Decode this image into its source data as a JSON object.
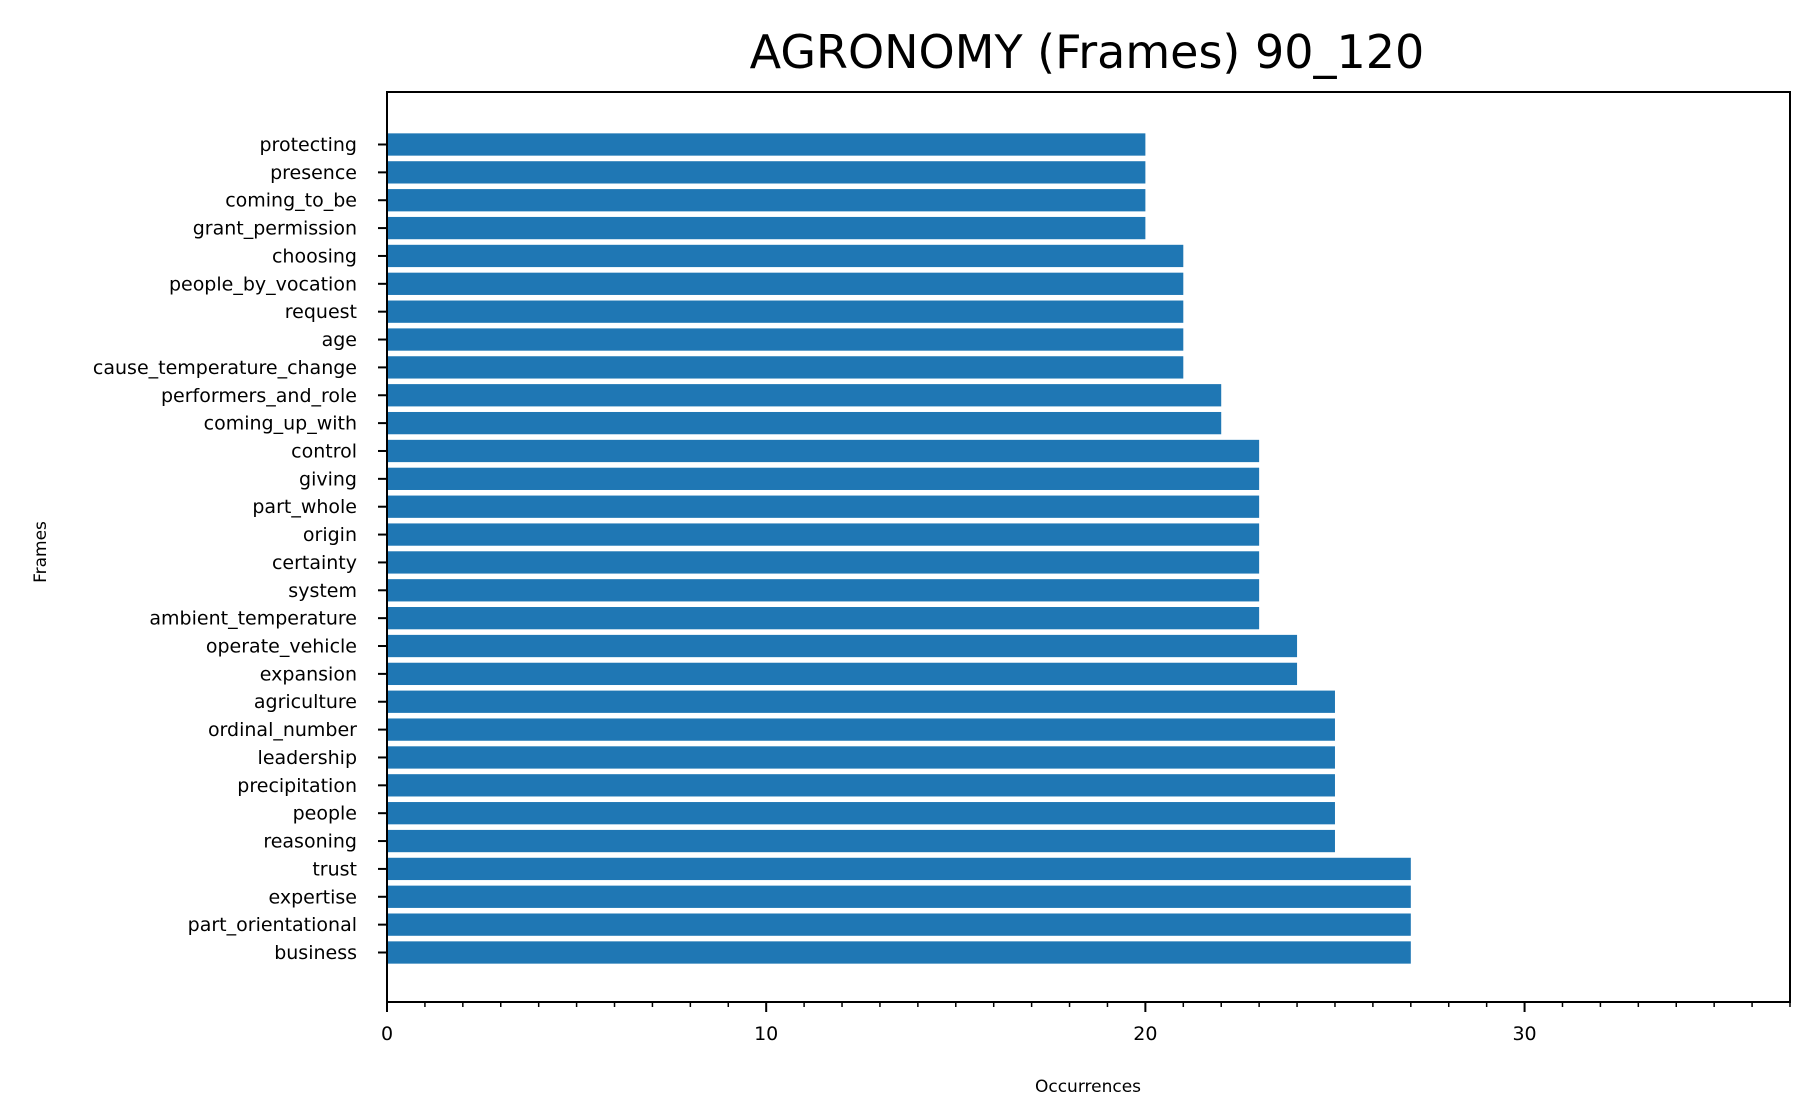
{
  "chart_data": {
    "type": "bar",
    "orientation": "horizontal",
    "title": "AGRONOMY (Frames) 90_120",
    "xlabel": "Occurrences",
    "ylabel": "Frames",
    "xlim": [
      0,
      37
    ],
    "x_ticks": [
      0,
      10,
      20,
      30
    ],
    "x_minor_tick_step": 1,
    "grid": false,
    "bar_color": "#1f77b4",
    "categories": [
      "protecting",
      "presence",
      "coming_to_be",
      "grant_permission",
      "choosing",
      "people_by_vocation",
      "request",
      "age",
      "cause_temperature_change",
      "performers_and_role",
      "coming_up_with",
      "control",
      "giving",
      "part_whole",
      "origin",
      "certainty",
      "system",
      "ambient_temperature",
      "operate_vehicle",
      "expansion",
      "agriculture",
      "ordinal_number",
      "leadership",
      "precipitation",
      "people",
      "reasoning",
      "trust",
      "expertise",
      "part_orientational",
      "business"
    ],
    "values": [
      20,
      20,
      20,
      20,
      21,
      21,
      21,
      21,
      21,
      22,
      22,
      23,
      23,
      23,
      23,
      23,
      23,
      23,
      24,
      24,
      25,
      25,
      25,
      25,
      25,
      25,
      27,
      27,
      27,
      27
    ]
  }
}
